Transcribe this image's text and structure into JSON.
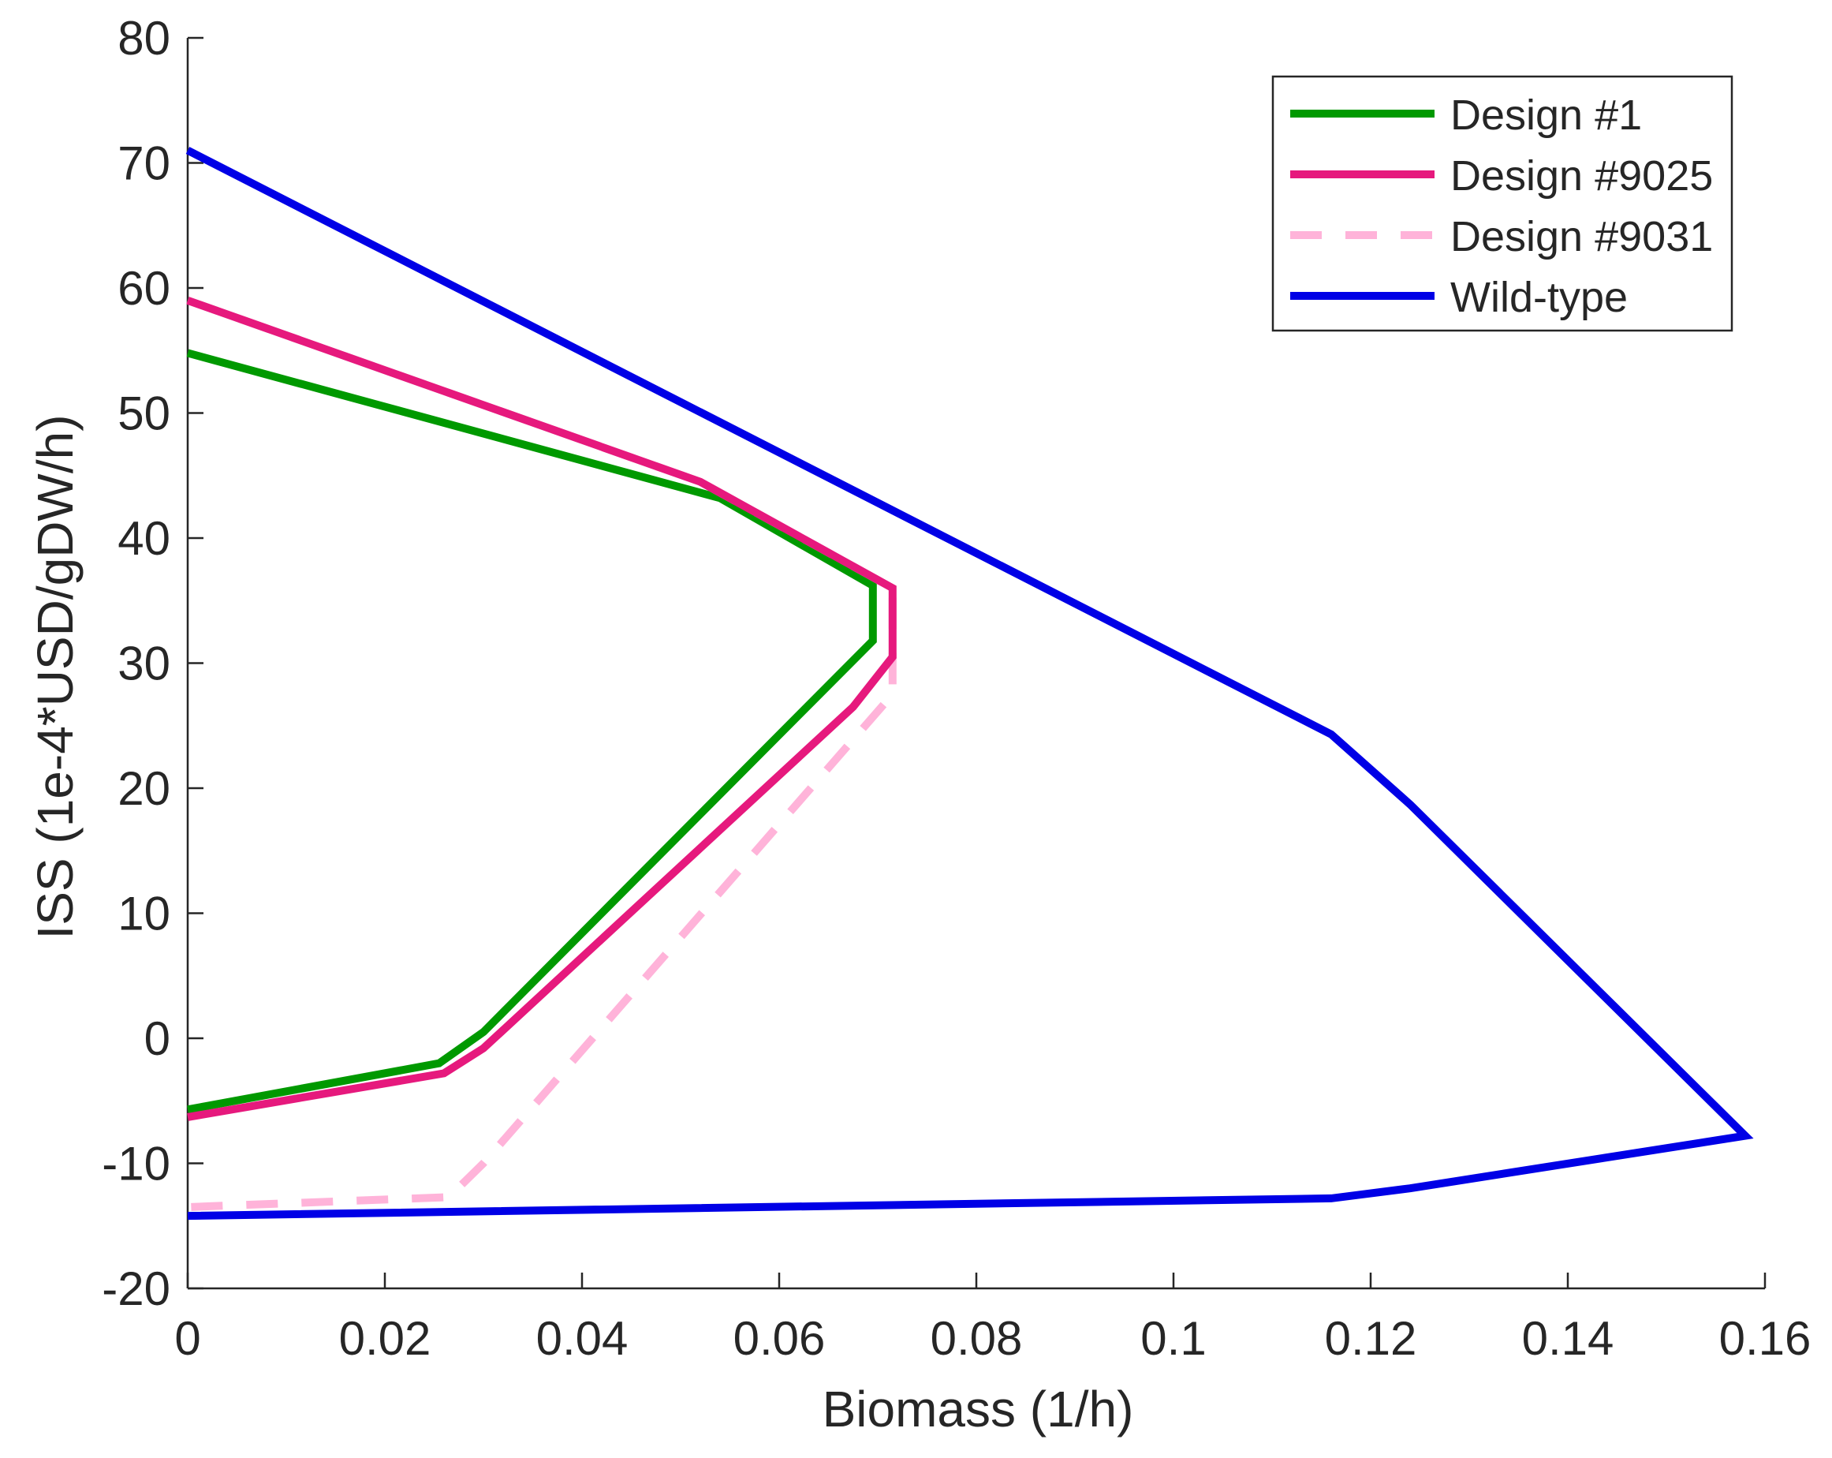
{
  "chart_data": {
    "type": "line",
    "title": "",
    "xlabel": "Biomass (1/h)",
    "ylabel": "ISS (1e-4*USD/gDW/h)",
    "xlim": [
      0,
      0.16
    ],
    "ylim": [
      -20,
      80
    ],
    "grid": false,
    "legend_position": "top-right",
    "x_ticks": [
      0,
      0.02,
      0.04,
      0.06,
      0.08,
      0.1,
      0.12,
      0.14,
      0.16
    ],
    "x_tick_labels": [
      "0",
      "0.02",
      "0.04",
      "0.06",
      "0.08",
      "0.1",
      "0.12",
      "0.14",
      "0.16"
    ],
    "y_ticks": [
      -20,
      -10,
      0,
      10,
      20,
      30,
      40,
      50,
      60,
      70,
      80
    ],
    "y_tick_labels": [
      "-20",
      "-10",
      "0",
      "10",
      "20",
      "30",
      "40",
      "50",
      "60",
      "70",
      "80"
    ],
    "series": [
      {
        "name": "Wild-type",
        "color": "#0000e6",
        "dash": false,
        "points": [
          [
            0,
            71
          ],
          [
            0.116,
            24.3
          ],
          [
            0.124,
            18.7
          ],
          [
            0.158,
            -7.8
          ],
          [
            0.124,
            -12
          ],
          [
            0.116,
            -12.8
          ],
          [
            0,
            -14.2
          ]
        ]
      },
      {
        "name": "Design #1",
        "color": "#009900",
        "dash": false,
        "points": [
          [
            0,
            54.8
          ],
          [
            0.054,
            43.2
          ],
          [
            0.0695,
            36.2
          ],
          [
            0.0695,
            31.8
          ],
          [
            0.03,
            0.5
          ],
          [
            0.0255,
            -2
          ],
          [
            0,
            -5.7
          ]
        ]
      },
      {
        "name": "Design #9031",
        "color": "#ffb3d9",
        "dash": true,
        "points": [
          [
            0,
            59
          ],
          [
            0.052,
            44.5
          ],
          [
            0.0715,
            36
          ],
          [
            0.0715,
            30.5
          ],
          [
            0.0715,
            27.5
          ],
          [
            0.03,
            -10
          ],
          [
            0.0265,
            -12.7
          ],
          [
            0,
            -13.5
          ]
        ]
      },
      {
        "name": "Design #9025",
        "color": "#e6197d",
        "dash": false,
        "points": [
          [
            0,
            59
          ],
          [
            0.052,
            44.5
          ],
          [
            0.0715,
            36
          ],
          [
            0.0715,
            30.5
          ],
          [
            0.0675,
            26.5
          ],
          [
            0.03,
            -0.8
          ],
          [
            0.026,
            -2.8
          ],
          [
            0,
            -6.3
          ]
        ]
      }
    ],
    "legend": [
      {
        "name": "Design #1",
        "color": "#009900",
        "dash": false
      },
      {
        "name": "Design #9025",
        "color": "#e6197d",
        "dash": false
      },
      {
        "name": "Design #9031",
        "color": "#ffb3d9",
        "dash": true
      },
      {
        "name": "Wild-type",
        "color": "#0000e6",
        "dash": false
      }
    ]
  }
}
